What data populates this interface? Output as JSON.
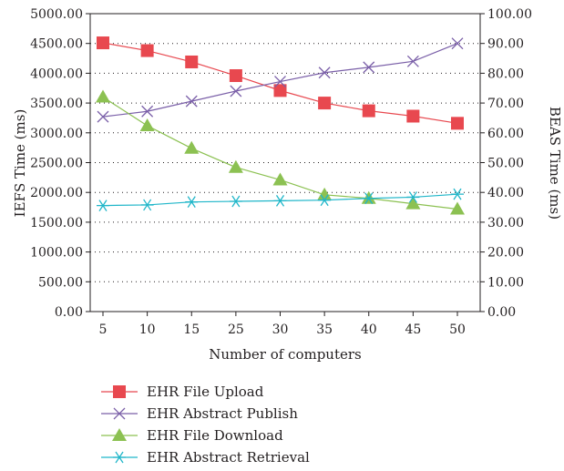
{
  "chart_data": {
    "type": "line",
    "title": "",
    "xlabel": "Number of computers",
    "ylabel_left": "IEFS Time (ms)",
    "ylabel_right": "BEAS Time (ms)",
    "categories": [
      "5",
      "10",
      "15",
      "25",
      "30",
      "35",
      "40",
      "45",
      "50"
    ],
    "ylim_left": [
      0,
      5000
    ],
    "ylim_right": [
      0,
      100
    ],
    "yticks_left": [
      "0.00",
      "500.00",
      "1000.00",
      "1500.00",
      "2000.00",
      "2500.00",
      "3000.00",
      "3500.00",
      "4000.00",
      "4500.00",
      "5000.00"
    ],
    "yticks_right": [
      "0.00",
      "10.00",
      "20.00",
      "30.00",
      "40.00",
      "50.00",
      "60.00",
      "70.00",
      "80.00",
      "90.00",
      "100.00"
    ],
    "grid": "horizontal dotted",
    "legend_placement": "bottom",
    "series": [
      {
        "name": "EHR File Upload",
        "axis": "left",
        "color": "#e8484f",
        "marker": "square",
        "values": [
          4510,
          4380,
          4190,
          3960,
          3710,
          3500,
          3370,
          3280,
          3160
        ]
      },
      {
        "name": "EHR Abstract Publish",
        "axis": "left",
        "color": "#7a5fa8",
        "marker": "x",
        "values": [
          3270,
          3360,
          3530,
          3700,
          3860,
          4010,
          4100,
          4200,
          4500
        ]
      },
      {
        "name": "EHR File Download",
        "axis": "left",
        "color": "#8cc152",
        "marker": "triangle",
        "values": [
          3600,
          3120,
          2740,
          2420,
          2210,
          1960,
          1900,
          1810,
          1720
        ]
      },
      {
        "name": "EHR Abstract Retrieval",
        "axis": "left",
        "color": "#1fb6c9",
        "marker": "asterisk",
        "values": [
          1780,
          1790,
          1840,
          1850,
          1860,
          1870,
          1900,
          1920,
          1970
        ]
      }
    ]
  }
}
